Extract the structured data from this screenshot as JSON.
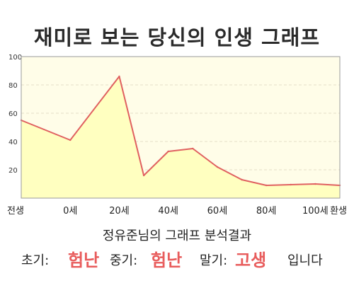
{
  "title": "재미로 보는 당신의 인생 그래프",
  "chart_data": {
    "type": "area",
    "x_tick_labels": [
      "전생",
      "0세",
      "20세",
      "40세",
      "60세",
      "80세",
      "100세",
      "환생"
    ],
    "x": [
      -20,
      0,
      20,
      30,
      40,
      50,
      60,
      70,
      80,
      90,
      100,
      110
    ],
    "y": [
      55,
      41,
      86,
      16,
      33,
      35,
      22,
      13,
      9,
      9.5,
      10,
      9
    ],
    "ylim": [
      0,
      100
    ],
    "y_ticks": [
      20,
      40,
      60,
      80,
      100
    ],
    "grid": true,
    "line_color": "#e06060",
    "fill_color": "#ffffc0",
    "background_color": "#fffde8"
  },
  "analysis": {
    "heading": "정유준님의 그래프 분석결과",
    "early_label": "초기:",
    "early_value": "험난",
    "middle_label": "중기:",
    "middle_value": "험난",
    "late_label": "말기:",
    "late_value": "고생",
    "suffix": "입니다"
  },
  "colors": {
    "highlight": "#e85c5c",
    "text": "#222222"
  }
}
